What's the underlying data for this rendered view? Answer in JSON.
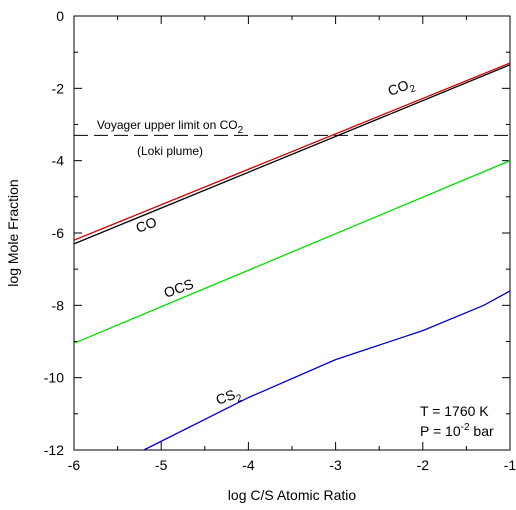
{
  "chart_data": {
    "type": "line",
    "xlabel": "log C/S Atomic Ratio",
    "ylabel": "log Mole Fraction",
    "xlim": [
      -6,
      -1
    ],
    "ylim": [
      -12,
      0
    ],
    "xticks": [
      "-6",
      "-5",
      "-4",
      "-3",
      "-2",
      "-1"
    ],
    "yticks": [
      "0",
      "-2",
      "-4",
      "-6",
      "-8",
      "-10",
      "-12"
    ],
    "grid": false,
    "series": [
      {
        "name": "CO2",
        "color": "#cc0000",
        "x": [
          -6,
          -1
        ],
        "y": [
          -6.2,
          -1.3
        ]
      },
      {
        "name": "CO",
        "color": "#000000",
        "x": [
          -6,
          -1
        ],
        "y": [
          -6.3,
          -1.35
        ]
      },
      {
        "name": "OCS",
        "color": "#00e000",
        "x": [
          -6,
          -1
        ],
        "y": [
          -9.05,
          -4.0
        ]
      },
      {
        "name": "CS2",
        "color": "#0000cc",
        "x": [
          -5.2,
          -4.0,
          -3.0,
          -2.0,
          -1.3,
          -1.0
        ],
        "y": [
          -12.0,
          -10.55,
          -9.5,
          -8.7,
          -8.0,
          -7.6
        ]
      }
    ],
    "reference_lines": [
      {
        "y": -3.3,
        "style": "dashed",
        "label": "Voyager upper limit on CO",
        "label_subscript": "2",
        "label2": "(Loki plume)"
      }
    ],
    "curve_labels": [
      {
        "text": "CO",
        "sub": "2"
      },
      {
        "text": "CO",
        "sub": ""
      },
      {
        "text": "OCS",
        "sub": ""
      },
      {
        "text": "CS",
        "sub": "2"
      }
    ],
    "conditions": {
      "temperature": "T = 1760 K",
      "pressure_prefix": "P = 10",
      "pressure_exponent": "-2",
      "pressure_suffix": " bar"
    }
  }
}
